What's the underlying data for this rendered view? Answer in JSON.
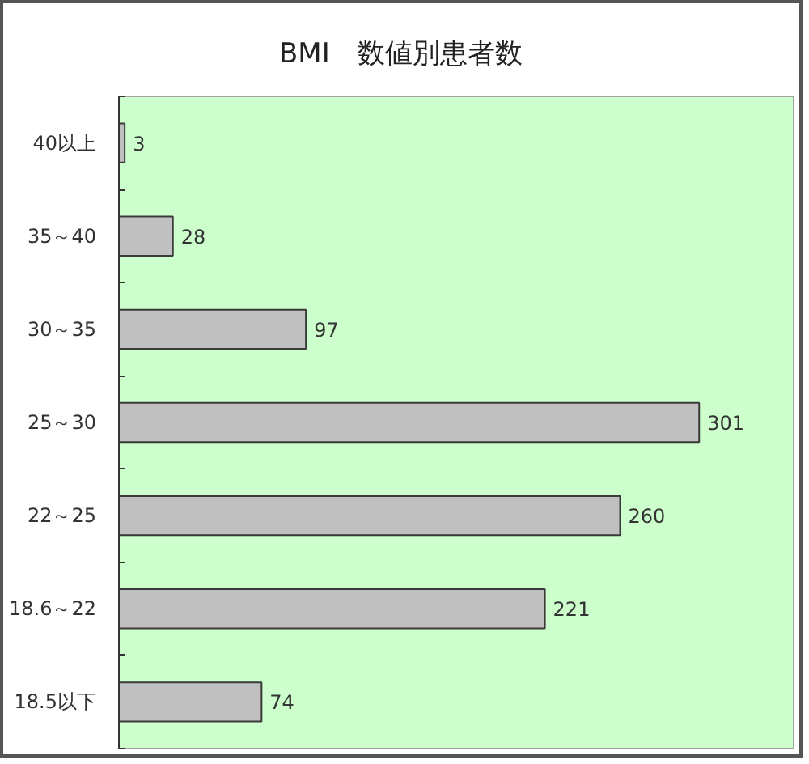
{
  "chart_data": {
    "type": "bar",
    "orientation": "horizontal",
    "title": "BMI　数値別患者数",
    "categories": [
      "40以上",
      "35～40",
      "30～35",
      "25～30",
      "22～25",
      "18.6～22",
      "18.5以下"
    ],
    "values": [
      3,
      28,
      97,
      301,
      260,
      221,
      74
    ],
    "color": "#c0c0c0",
    "data_labels": true,
    "xlim": [
      0,
      350
    ],
    "tick_labels": "y"
  }
}
